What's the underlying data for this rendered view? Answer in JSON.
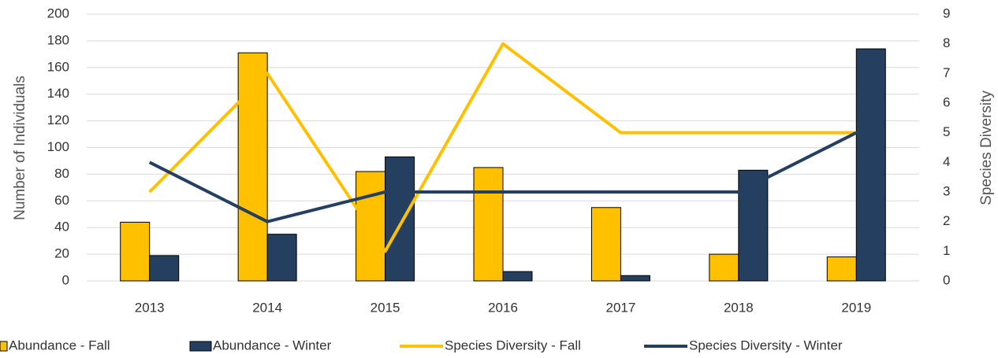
{
  "chart_data": {
    "type": "bar",
    "categories": [
      "2013",
      "2014",
      "2015",
      "2016",
      "2017",
      "2018",
      "2019"
    ],
    "series": [
      {
        "name": "Abundance - Fall",
        "type": "bar",
        "color": "#ffc000",
        "values": [
          44,
          171,
          82,
          85,
          55,
          20,
          18
        ]
      },
      {
        "name": "Abundance - Winter",
        "type": "bar",
        "color": "#243f60",
        "values": [
          19,
          35,
          93,
          7,
          4,
          83,
          174
        ]
      },
      {
        "name": "Species Diversity - Fall",
        "type": "line",
        "axis": "y2",
        "color": "#ffc000",
        "values": [
          3,
          7,
          1,
          8,
          5,
          5,
          5
        ]
      },
      {
        "name": "Species Diversity - Winter",
        "type": "line",
        "axis": "y2",
        "color": "#243f60",
        "values": [
          4,
          2,
          3,
          3,
          3,
          3,
          5
        ]
      }
    ],
    "ylabel": "Number of Individuals",
    "y2label": "Species Diversity",
    "ylim": [
      0,
      200
    ],
    "yticks": [
      0,
      20,
      40,
      60,
      80,
      100,
      120,
      140,
      160,
      180,
      200
    ],
    "y2lim": [
      0,
      9
    ],
    "y2ticks": [
      0,
      1,
      2,
      3,
      4,
      5,
      6,
      7,
      8,
      9
    ],
    "grid": true,
    "legend": "bottom"
  }
}
